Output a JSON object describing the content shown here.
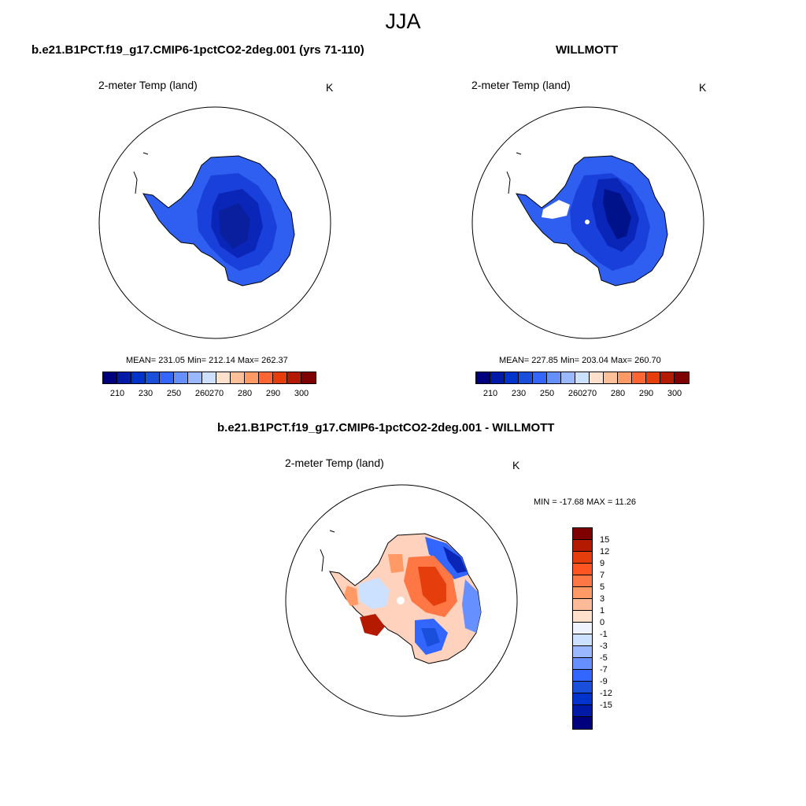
{
  "figure_title": "JJA",
  "panel_left": {
    "title": "b.e21.B1PCT.f19_g17.CMIP6-1pctCO2-2deg.001 (yrs 71-110)",
    "variable": "2-meter Temp (land)",
    "units": "K",
    "stats": "MEAN= 231.05  Min= 212.14  Max= 262.37"
  },
  "panel_right": {
    "title": "WILLMOTT",
    "variable": "2-meter Temp (land)",
    "units": "K",
    "stats": "MEAN= 227.85  Min= 203.04  Max= 260.70"
  },
  "panel_diff": {
    "title": "b.e21.B1PCT.f19_g17.CMIP6-1pctCO2-2deg.001 - WILLMOTT",
    "variable": "2-meter Temp (land)",
    "units": "K",
    "stats": "MIN = -17.68 MAX =  11.26"
  },
  "temp_colorbar": {
    "colors": [
      "#00007f",
      "#0019a6",
      "#0033cc",
      "#1a4fdb",
      "#3366ff",
      "#6690ff",
      "#99b8ff",
      "#cce0ff",
      "#ffe0cc",
      "#ffbf99",
      "#ff9966",
      "#ff6633",
      "#e63d0d",
      "#b31a00",
      "#7f0000"
    ],
    "tick_labels": [
      "210",
      "230",
      "250",
      "260",
      "270",
      "280",
      "290",
      "300"
    ]
  },
  "diff_colorbar": {
    "colors": [
      "#7f0000",
      "#b31a00",
      "#e63d0d",
      "#ff5522",
      "#ff7744",
      "#ff9966",
      "#ffbb99",
      "#ffe0cc",
      "#eef3ff",
      "#cce0ff",
      "#99b8ff",
      "#6690ff",
      "#3366ff",
      "#1a4fdb",
      "#0033cc",
      "#0019a6",
      "#00007f"
    ],
    "tick_labels": [
      "15",
      "12",
      "9",
      "7",
      "5",
      "3",
      "1",
      "0",
      "-1",
      "-3",
      "-5",
      "-7",
      "-9",
      "-12",
      "-15"
    ]
  }
}
